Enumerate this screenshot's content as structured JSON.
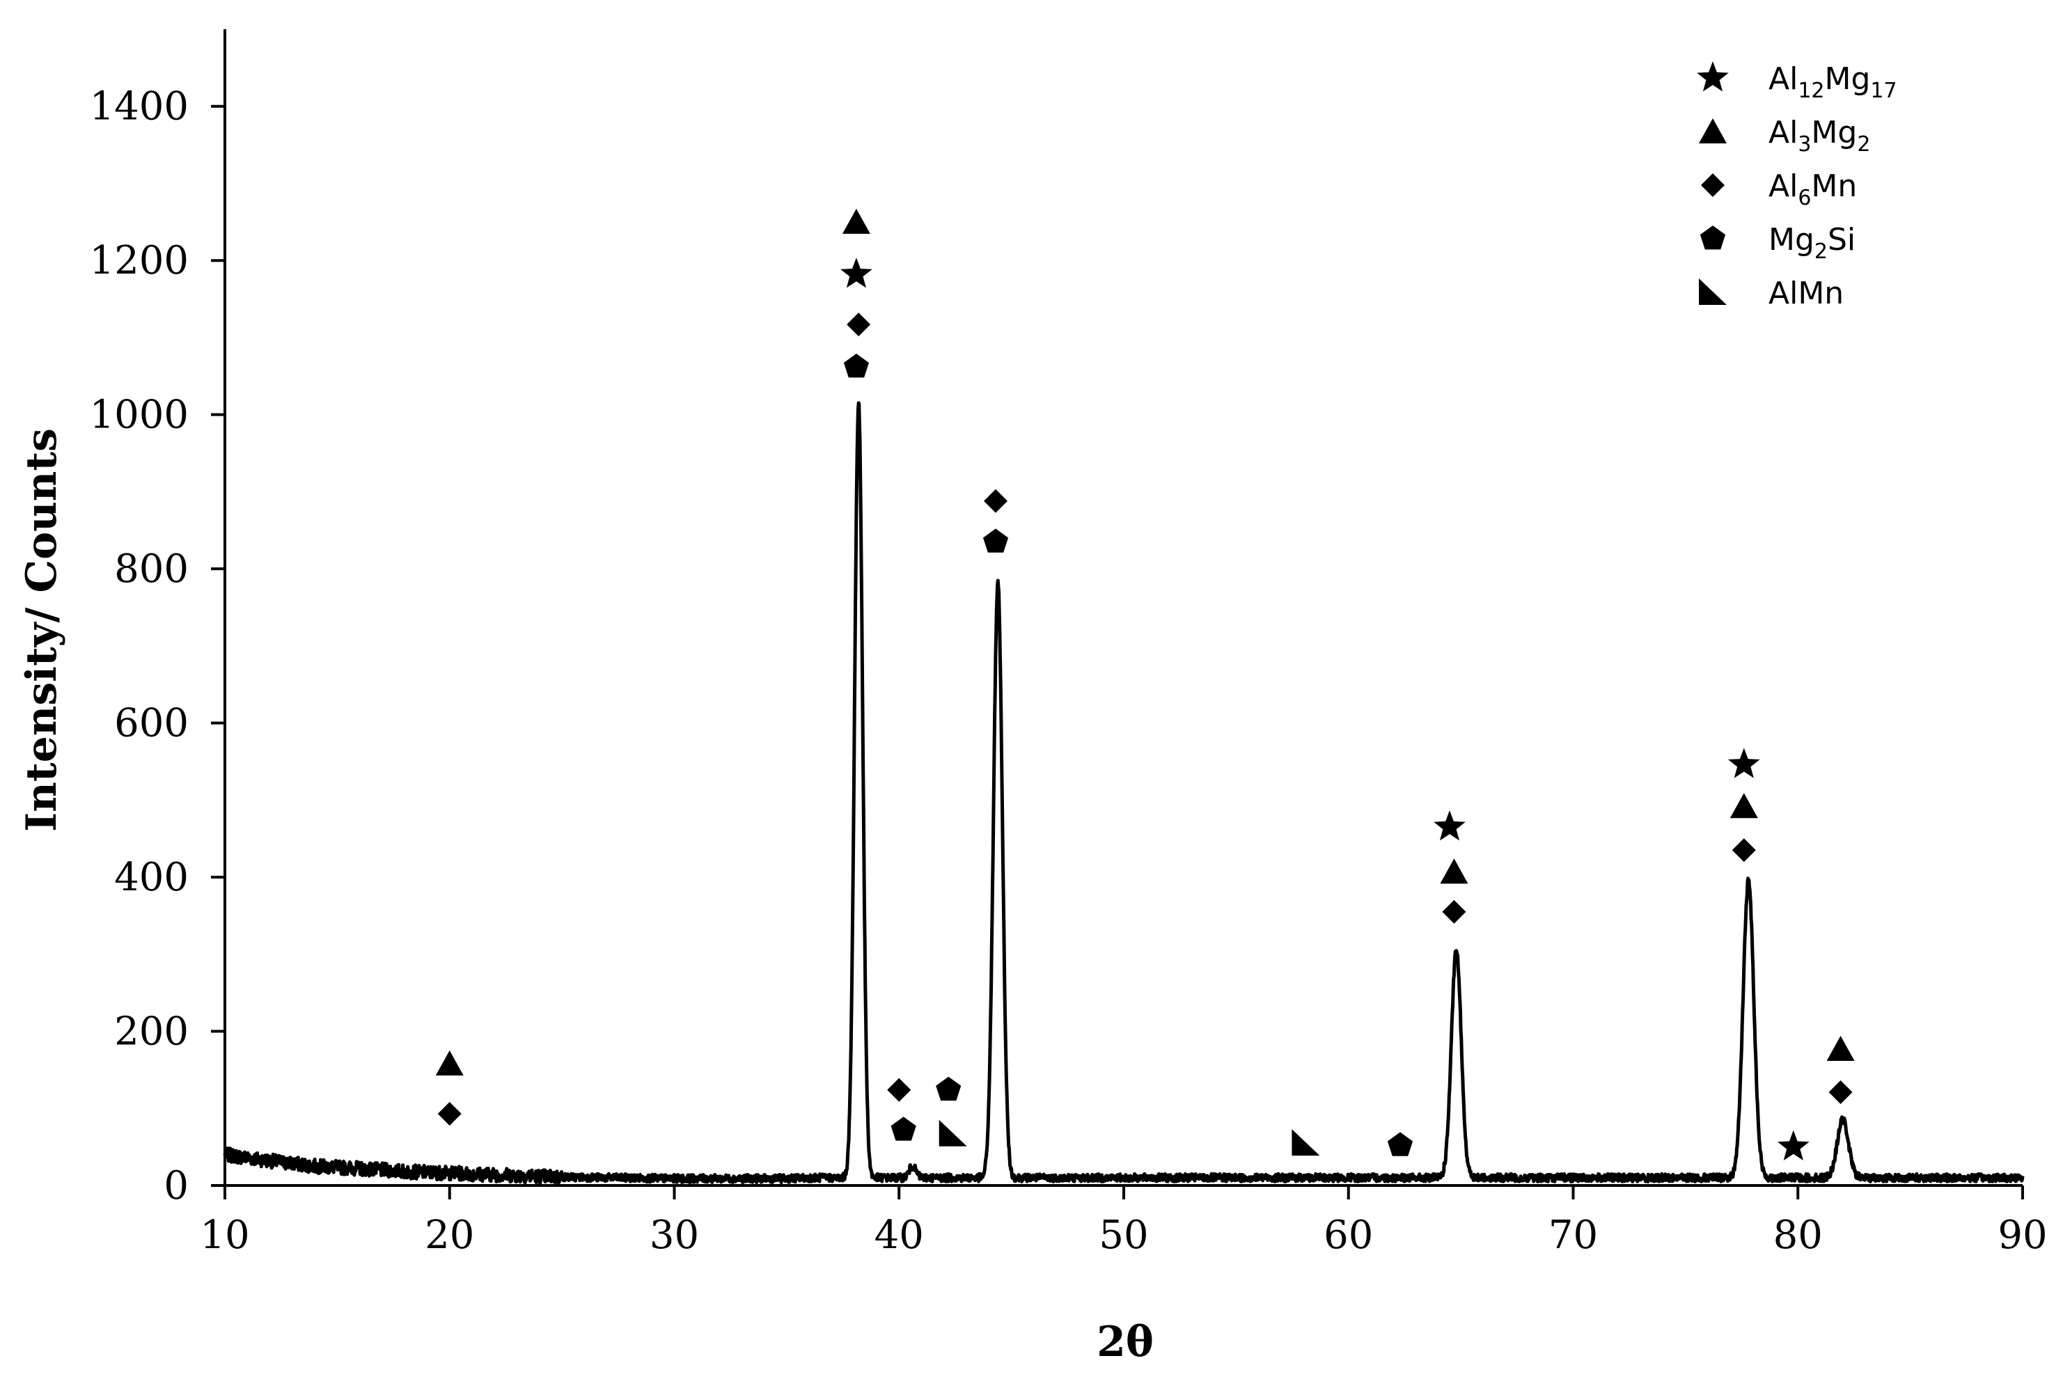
{
  "chart_data": {
    "type": "line",
    "xlabel": "2θ",
    "ylabel": "Intensity/ Counts",
    "xlim": [
      10,
      90
    ],
    "ylim": [
      0,
      1500
    ],
    "xticks": [
      10,
      20,
      30,
      40,
      50,
      60,
      70,
      80,
      90
    ],
    "yticks": [
      0,
      200,
      400,
      600,
      800,
      1000,
      1200,
      1400
    ],
    "grid": false,
    "legend_position": "top-right",
    "baseline": [
      [
        10,
        40
      ],
      [
        12,
        32
      ],
      [
        14,
        25
      ],
      [
        16,
        22
      ],
      [
        18,
        18
      ],
      [
        20,
        16
      ],
      [
        22,
        14
      ],
      [
        25,
        11
      ],
      [
        30,
        9
      ],
      [
        35,
        9
      ],
      [
        36,
        10
      ]
    ],
    "peaks": [
      {
        "x": 38.2,
        "y": 1015,
        "width": 0.18
      },
      {
        "x": 40.6,
        "y": 25,
        "width": 0.15
      },
      {
        "x": 44.4,
        "y": 780,
        "width": 0.2
      },
      {
        "x": 64.8,
        "y": 305,
        "width": 0.22
      },
      {
        "x": 77.8,
        "y": 395,
        "width": 0.24
      },
      {
        "x": 82.0,
        "y": 85,
        "width": 0.25
      }
    ],
    "legend": [
      {
        "marker": "star",
        "label_parts": [
          [
            "Al",
            ""
          ],
          [
            "12",
            "sub"
          ],
          [
            "Mg",
            ""
          ],
          [
            "17",
            "sub"
          ]
        ]
      },
      {
        "marker": "triangle",
        "label_parts": [
          [
            "Al",
            ""
          ],
          [
            "3",
            "sub"
          ],
          [
            "Mg",
            ""
          ],
          [
            "2",
            "sub"
          ]
        ]
      },
      {
        "marker": "diamond",
        "label_parts": [
          [
            "Al",
            ""
          ],
          [
            "6",
            "sub"
          ],
          [
            "Mn",
            ""
          ]
        ]
      },
      {
        "marker": "pentagon",
        "label_parts": [
          [
            "Mg",
            ""
          ],
          [
            "2",
            "sub"
          ],
          [
            "Si",
            ""
          ]
        ]
      },
      {
        "marker": "right-triangle",
        "label_parts": [
          [
            "AlMn",
            ""
          ]
        ]
      }
    ],
    "annotations": [
      {
        "marker": "triangle",
        "x": 20.0,
        "y": 158
      },
      {
        "marker": "diamond",
        "x": 20.0,
        "y": 93
      },
      {
        "marker": "triangle",
        "x": 38.1,
        "y": 1250
      },
      {
        "marker": "star",
        "x": 38.1,
        "y": 1182
      },
      {
        "marker": "diamond",
        "x": 38.2,
        "y": 1117
      },
      {
        "marker": "pentagon",
        "x": 38.1,
        "y": 1062
      },
      {
        "marker": "diamond",
        "x": 40.0,
        "y": 124
      },
      {
        "marker": "pentagon",
        "x": 40.2,
        "y": 72
      },
      {
        "marker": "pentagon",
        "x": 42.2,
        "y": 124
      },
      {
        "marker": "right-triangle",
        "x": 42.4,
        "y": 67
      },
      {
        "marker": "diamond",
        "x": 44.3,
        "y": 888
      },
      {
        "marker": "pentagon",
        "x": 44.3,
        "y": 835
      },
      {
        "marker": "right-triangle",
        "x": 58.1,
        "y": 55
      },
      {
        "marker": "pentagon",
        "x": 62.3,
        "y": 52
      },
      {
        "marker": "star",
        "x": 64.5,
        "y": 465
      },
      {
        "marker": "triangle",
        "x": 64.7,
        "y": 407
      },
      {
        "marker": "diamond",
        "x": 64.7,
        "y": 355
      },
      {
        "marker": "star",
        "x": 77.6,
        "y": 546
      },
      {
        "marker": "triangle",
        "x": 77.6,
        "y": 492
      },
      {
        "marker": "diamond",
        "x": 77.6,
        "y": 435
      },
      {
        "marker": "star",
        "x": 79.8,
        "y": 50
      },
      {
        "marker": "triangle",
        "x": 81.9,
        "y": 177
      },
      {
        "marker": "diamond",
        "x": 81.9,
        "y": 121
      }
    ]
  }
}
